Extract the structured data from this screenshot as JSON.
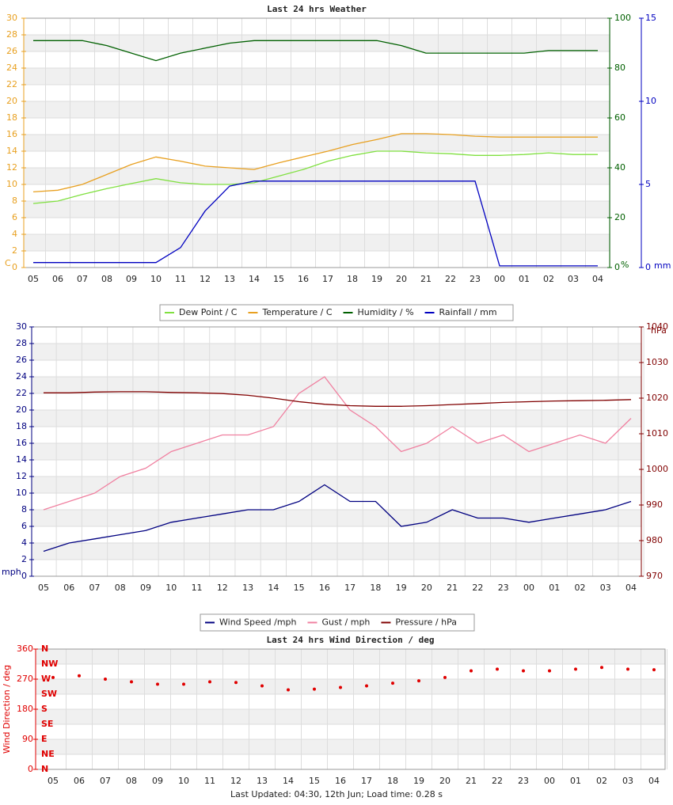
{
  "chart_data": [
    {
      "type": "line",
      "title": "Last 24 hrs Weather",
      "categories": [
        "05",
        "06",
        "07",
        "08",
        "09",
        "10",
        "11",
        "12",
        "13",
        "14",
        "15",
        "16",
        "17",
        "18",
        "19",
        "20",
        "21",
        "22",
        "23",
        "00",
        "01",
        "02",
        "03",
        "04"
      ],
      "series": [
        {
          "name": "Dew Point / C",
          "color": "#80e040",
          "axis": "y",
          "values": [
            7.7,
            8.0,
            8.8,
            9.5,
            10.1,
            10.7,
            10.2,
            10.0,
            10.0,
            10.2,
            11.0,
            11.8,
            12.8,
            13.5,
            14.0,
            14.0,
            13.8,
            13.7,
            13.5,
            13.5,
            13.6,
            13.8,
            13.6,
            13.6
          ]
        },
        {
          "name": "Temperature / C",
          "color": "#e8a020",
          "axis": "y",
          "values": [
            9.1,
            9.3,
            10.0,
            11.2,
            12.4,
            13.3,
            12.8,
            12.2,
            12.0,
            11.8,
            12.6,
            13.3,
            14.0,
            14.8,
            15.4,
            16.1,
            16.1,
            16.0,
            15.8,
            15.7,
            15.7,
            15.7,
            15.7,
            15.7
          ]
        },
        {
          "name": "Humidity / %",
          "color": "#006000",
          "axis": "y2",
          "values": [
            91,
            91,
            91,
            89,
            86,
            83,
            86,
            88,
            90,
            91,
            91,
            91,
            91,
            91,
            91,
            89,
            86,
            86,
            86,
            86,
            86,
            87,
            87,
            87
          ]
        },
        {
          "name": "Rainfall / mm",
          "color": "#0000c0",
          "axis": "y3",
          "values": [
            0.3,
            0.3,
            0.3,
            0.3,
            0.3,
            0.3,
            1.2,
            3.4,
            4.9,
            5.2,
            5.2,
            5.2,
            5.2,
            5.2,
            5.2,
            5.2,
            5.2,
            5.2,
            5.2,
            0.1,
            0.1,
            0.1,
            0.1,
            0.1
          ]
        }
      ],
      "ylim": [
        0,
        30
      ],
      "yticks": [
        0,
        2,
        4,
        6,
        8,
        10,
        12,
        14,
        16,
        18,
        20,
        22,
        24,
        26,
        28,
        30
      ],
      "ylabel": "C",
      "y2lim": [
        0,
        100
      ],
      "y2ticks": [
        0,
        20,
        40,
        60,
        80,
        100
      ],
      "y2label": "%",
      "y3lim": [
        0,
        15
      ],
      "y3ticks": [
        0,
        5,
        10,
        15
      ],
      "y3label": "mm",
      "axis_colors": {
        "y": "#e8a020",
        "y2": "#006000",
        "y3": "#0000c0"
      },
      "grid": true,
      "legend": "bottom"
    },
    {
      "type": "line",
      "categories": [
        "05",
        "06",
        "07",
        "08",
        "09",
        "10",
        "11",
        "12",
        "13",
        "14",
        "15",
        "16",
        "17",
        "18",
        "19",
        "20",
        "21",
        "22",
        "23",
        "00",
        "01",
        "02",
        "03",
        "04"
      ],
      "series": [
        {
          "name": "Wind Speed /mph",
          "color": "#000080",
          "axis": "y",
          "values": [
            3,
            4,
            4.5,
            5,
            5.5,
            6.5,
            7,
            7.5,
            8,
            8,
            9,
            11,
            9,
            9,
            6,
            6.5,
            8,
            7,
            7,
            6.5,
            7,
            7.5,
            8,
            9
          ]
        },
        {
          "name": "Gust / mph",
          "color": "#f080a0",
          "axis": "y",
          "values": [
            8,
            9,
            10,
            12,
            13,
            15,
            16,
            17,
            17,
            18,
            22,
            24,
            20,
            18,
            15,
            16,
            18,
            16,
            17,
            15,
            16,
            17,
            16,
            19
          ]
        },
        {
          "name": "Pressure / hPa",
          "color": "#800000",
          "axis": "y2",
          "values": [
            1021.5,
            1021.5,
            1021.7,
            1021.8,
            1021.8,
            1021.6,
            1021.5,
            1021.3,
            1020.8,
            1020,
            1019,
            1018.3,
            1017.9,
            1017.7,
            1017.7,
            1017.9,
            1018.2,
            1018.5,
            1018.8,
            1019,
            1019.2,
            1019.3,
            1019.4,
            1019.6
          ]
        }
      ],
      "ylim": [
        0,
        30
      ],
      "yticks": [
        0,
        2,
        4,
        6,
        8,
        10,
        12,
        14,
        16,
        18,
        20,
        22,
        24,
        26,
        28,
        30
      ],
      "ylabel": "mph",
      "y2lim": [
        970,
        1040
      ],
      "y2ticks": [
        970,
        980,
        990,
        1000,
        1010,
        1020,
        1030,
        1040
      ],
      "y2label": "hPa",
      "axis_colors": {
        "y": "#000080",
        "y2": "#800000"
      },
      "grid": true,
      "legend": "bottom"
    },
    {
      "type": "scatter",
      "title": "Last 24 hrs Wind Direction / deg",
      "categories": [
        "05",
        "06",
        "07",
        "08",
        "09",
        "10",
        "11",
        "12",
        "13",
        "14",
        "15",
        "16",
        "17",
        "18",
        "19",
        "20",
        "21",
        "22",
        "23",
        "00",
        "01",
        "02",
        "03",
        "04"
      ],
      "series": [
        {
          "color": "#e00000",
          "axis": "y",
          "values": [
            275,
            280,
            270,
            262,
            255,
            255,
            262,
            260,
            250,
            238,
            240,
            245,
            250,
            258,
            265,
            275,
            295,
            300,
            295,
            295,
            300,
            305,
            300,
            298
          ]
        }
      ],
      "ylim": [
        0,
        360
      ],
      "yticks": [
        0,
        90,
        180,
        270,
        360
      ],
      "ylabel": "Wind Direction / deg",
      "compass_ticks": [
        {
          "value": 0,
          "label": "N"
        },
        {
          "value": 45,
          "label": "NE"
        },
        {
          "value": 90,
          "label": "E"
        },
        {
          "value": 135,
          "label": "SE"
        },
        {
          "value": 180,
          "label": "S"
        },
        {
          "value": 225,
          "label": "SW"
        },
        {
          "value": 270,
          "label": "W"
        },
        {
          "value": 315,
          "label": "NW"
        },
        {
          "value": 360,
          "label": "N"
        }
      ],
      "axis_colors": {
        "y": "#e00000"
      },
      "grid": true
    }
  ],
  "footer": "Last Updated: 04:30, 12th Jun; Load time: 0.28 s"
}
